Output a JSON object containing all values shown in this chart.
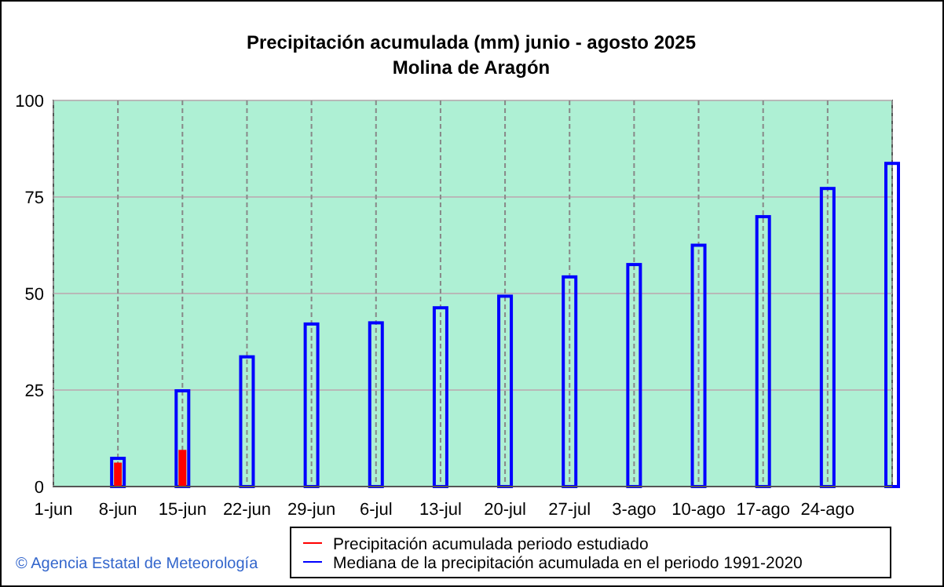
{
  "chart_data": {
    "type": "bar",
    "title": "Precipitación acumulada (mm) junio - agosto 2025",
    "subtitle": "Molina de Aragón",
    "categories": [
      "1-jun",
      "8-jun",
      "15-jun",
      "22-jun",
      "29-jun",
      "6-jul",
      "13-jul",
      "20-jul",
      "27-jul",
      "3-ago",
      "10-ago",
      "17-ago",
      "24-ago",
      null
    ],
    "series": [
      {
        "name": "Precipitación acumulada periodo estudiado",
        "color": "#ff0000",
        "values": [
          null,
          6.2,
          9.5,
          null,
          null,
          null,
          null,
          null,
          null,
          null,
          null,
          null,
          null,
          null
        ]
      },
      {
        "name": "Mediana de la precipitación acumulada en el periodo 1991-2020",
        "color": "#0000ff",
        "values": [
          null,
          7.3,
          24.8,
          33.6,
          42.1,
          42.4,
          46.3,
          49.3,
          54.3,
          57.5,
          62.5,
          69.9,
          77.2,
          83.7
        ]
      }
    ],
    "ylim": [
      0,
      100
    ],
    "yticks": [
      0,
      25,
      50,
      75,
      100
    ],
    "grid": true,
    "legend": "bottom",
    "annotations": [
      "© Agencia Estatal de Meteorología"
    ]
  }
}
